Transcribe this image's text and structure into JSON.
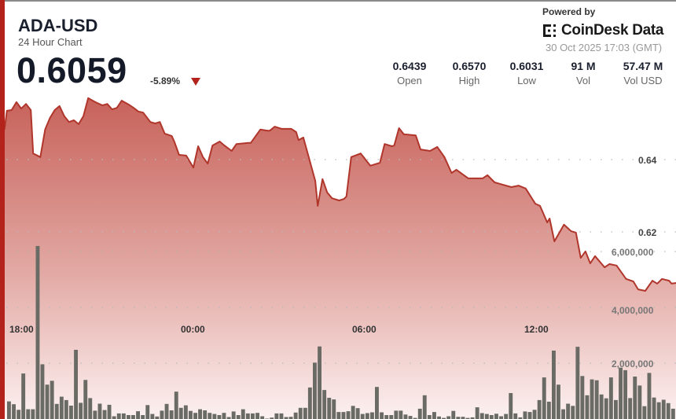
{
  "header": {
    "symbol": "ADA-USD",
    "subtitle": "24 Hour Chart",
    "price": "0.6059",
    "change": "-5.89%",
    "change_direction": "down",
    "powered_by": "Powered by",
    "brand": "CoinDesk Data",
    "timestamp": "30 Oct 2025 17:03 (GMT)"
  },
  "stats": [
    {
      "value": "0.6439",
      "label": "Open"
    },
    {
      "value": "0.6570",
      "label": "High"
    },
    {
      "value": "0.6031",
      "label": "Low"
    },
    {
      "value": "91 M",
      "label": "Vol"
    },
    {
      "value": "57.47 M",
      "label": "Vol USD"
    }
  ],
  "colors": {
    "accent": "#b3231b",
    "line": "#b0362c",
    "fill_top": "#c7625a",
    "fill_bottom": "#fbeeee",
    "volume_bar": "#6b6b66"
  },
  "chart_data": {
    "type": "area",
    "price_axis": {
      "ticks": [
        "0.64",
        "0.62"
      ],
      "tick_values": [
        0.64,
        0.62
      ]
    },
    "volume_axis": {
      "ticks": [
        "6,000,000",
        "4,000,000",
        "2,000,000"
      ],
      "tick_values": [
        6000000,
        4000000,
        2000000
      ]
    },
    "time_axis": {
      "ticks": [
        "18:00",
        "00:00",
        "06:00",
        "12:00"
      ]
    },
    "grid": true,
    "price_series": [
      [
        "17:25",
        0.6483
      ],
      [
        "17:30",
        0.6535
      ],
      [
        "17:40",
        0.6537
      ],
      [
        "17:50",
        0.6559
      ],
      [
        "18:00",
        0.6541
      ],
      [
        "18:10",
        0.6554
      ],
      [
        "18:20",
        0.6537
      ],
      [
        "18:25",
        0.6417
      ],
      [
        "18:40",
        0.6407
      ],
      [
        "18:50",
        0.6483
      ],
      [
        "19:00",
        0.6515
      ],
      [
        "19:10",
        0.6537
      ],
      [
        "19:20",
        0.6548
      ],
      [
        "19:30",
        0.652
      ],
      [
        "19:40",
        0.6504
      ],
      [
        "19:50",
        0.6509
      ],
      [
        "20:00",
        0.6498
      ],
      [
        "20:10",
        0.652
      ],
      [
        "20:20",
        0.657
      ],
      [
        "20:35",
        0.6559
      ],
      [
        "20:50",
        0.655
      ],
      [
        "21:00",
        0.6554
      ],
      [
        "21:10",
        0.6539
      ],
      [
        "21:20",
        0.6543
      ],
      [
        "21:30",
        0.6563
      ],
      [
        "21:45",
        0.6552
      ],
      [
        "21:55",
        0.6543
      ],
      [
        "22:05",
        0.6533
      ],
      [
        "22:15",
        0.653
      ],
      [
        "22:30",
        0.6504
      ],
      [
        "22:40",
        0.65
      ],
      [
        "22:50",
        0.6504
      ],
      [
        "23:00",
        0.6472
      ],
      [
        "23:15",
        0.6465
      ],
      [
        "23:20",
        0.645
      ],
      [
        "23:30",
        0.6413
      ],
      [
        "23:45",
        0.6411
      ],
      [
        "00:00",
        0.6378
      ],
      [
        "00:10",
        0.6437
      ],
      [
        "00:20",
        0.6407
      ],
      [
        "00:30",
        0.6389
      ],
      [
        "00:40",
        0.6439
      ],
      [
        "00:55",
        0.645
      ],
      [
        "01:05",
        0.6439
      ],
      [
        "01:20",
        0.6424
      ],
      [
        "01:30",
        0.6443
      ],
      [
        "01:55",
        0.6446
      ],
      [
        "02:00",
        0.6446
      ],
      [
        "02:20",
        0.6483
      ],
      [
        "02:35",
        0.648
      ],
      [
        "02:40",
        0.648
      ],
      [
        "02:50",
        0.6491
      ],
      [
        "03:05",
        0.6485
      ],
      [
        "03:25",
        0.6485
      ],
      [
        "03:35",
        0.6476
      ],
      [
        "03:40",
        0.6454
      ],
      [
        "03:50",
        0.6461
      ],
      [
        "04:15",
        0.6341
      ],
      [
        "04:20",
        0.6272
      ],
      [
        "04:30",
        0.6346
      ],
      [
        "04:40",
        0.6309
      ],
      [
        "04:50",
        0.6293
      ],
      [
        "05:05",
        0.6287
      ],
      [
        "05:15",
        0.6291
      ],
      [
        "05:20",
        0.6298
      ],
      [
        "05:30",
        0.6407
      ],
      [
        "05:50",
        0.6417
      ],
      [
        "06:10",
        0.6383
      ],
      [
        "06:30",
        0.6391
      ],
      [
        "06:40",
        0.6443
      ],
      [
        "06:55",
        0.6437
      ],
      [
        "07:00",
        0.6439
      ],
      [
        "07:10",
        0.6487
      ],
      [
        "07:20",
        0.647
      ],
      [
        "07:45",
        0.6467
      ],
      [
        "07:55",
        0.6428
      ],
      [
        "08:15",
        0.6424
      ],
      [
        "08:30",
        0.6435
      ],
      [
        "08:45",
        0.6407
      ],
      [
        "09:00",
        0.6363
      ],
      [
        "09:10",
        0.6372
      ],
      [
        "09:35",
        0.6348
      ],
      [
        "10:05",
        0.6348
      ],
      [
        "10:15",
        0.6357
      ],
      [
        "10:30",
        0.6337
      ],
      [
        "11:05",
        0.6324
      ],
      [
        "11:20",
        0.6328
      ],
      [
        "11:35",
        0.632
      ],
      [
        "11:55",
        0.6278
      ],
      [
        "12:05",
        0.6272
      ],
      [
        "12:20",
        0.6226
      ],
      [
        "12:25",
        0.6237
      ],
      [
        "12:35",
        0.6174
      ],
      [
        "12:55",
        0.622
      ],
      [
        "13:10",
        0.6202
      ],
      [
        "13:20",
        0.6198
      ],
      [
        "13:30",
        0.6128
      ],
      [
        "13:40",
        0.6146
      ],
      [
        "13:50",
        0.6113
      ],
      [
        "14:00",
        0.6133
      ],
      [
        "14:20",
        0.6102
      ],
      [
        "14:30",
        0.6111
      ],
      [
        "14:45",
        0.6107
      ],
      [
        "15:05",
        0.607
      ],
      [
        "15:20",
        0.6063
      ],
      [
        "15:30",
        0.6041
      ],
      [
        "15:45",
        0.6037
      ],
      [
        "16:00",
        0.6065
      ],
      [
        "16:10",
        0.6057
      ],
      [
        "16:20",
        0.607
      ],
      [
        "16:35",
        0.6065
      ],
      [
        "16:40",
        0.6057
      ],
      [
        "16:50",
        0.6059
      ]
    ],
    "volume_millions": [
      0.63,
      0.53,
      0.33,
      1.63,
      0.35,
      0.35,
      6.2,
      1.96,
      1.23,
      1.37,
      0.54,
      0.8,
      0.68,
      0.48,
      2.48,
      0.58,
      1.4,
      0.75,
      0.3,
      0.55,
      0.32,
      0.51,
      0.1,
      0.2,
      0.2,
      0.14,
      0.14,
      0.28,
      0.14,
      0.5,
      0.18,
      0.09,
      0.3,
      0.54,
      0.31,
      0.98,
      0.4,
      0.49,
      0.29,
      0.22,
      0.35,
      0.31,
      0.22,
      0.18,
      0.14,
      0.22,
      0.07,
      0.27,
      0.14,
      0.35,
      0.2,
      0.2,
      0.22,
      0.1,
      0.01,
      0.05,
      0.2,
      0.2,
      0.07,
      0.08,
      0.23,
      0.4,
      0.4,
      1.13,
      2.02,
      2.6,
      1.04,
      0.76,
      0.7,
      0.25,
      0.25,
      0.28,
      0.47,
      0.39,
      0.18,
      0.21,
      0.24,
      1.15,
      0.24,
      0.14,
      0.14,
      0.3,
      0.3,
      0.16,
      0.11,
      0.04,
      0.37,
      0.85,
      0.14,
      0.25,
      0.09,
      0.04,
      0.1,
      0.29,
      0.08,
      0.08,
      0.04,
      0.06,
      0.42,
      0.21,
      0.18,
      0.14,
      0.19,
      0.1,
      0.18,
      0.93,
      0.2,
      0.06,
      0.27,
      0.25,
      0.33,
      0.68,
      1.49,
      0.62,
      2.45,
      1.23,
      0.35,
      0.55,
      0.47,
      2.59,
      1.54,
      0.85,
      1.42,
      1.39,
      0.88,
      0.74,
      1.49,
      0.68,
      1.84,
      1.75,
      0.75,
      1.52,
      1.2,
      0.46,
      1.65,
      0.77,
      0.6,
      0.69,
      0.57,
      0.37
    ]
  }
}
